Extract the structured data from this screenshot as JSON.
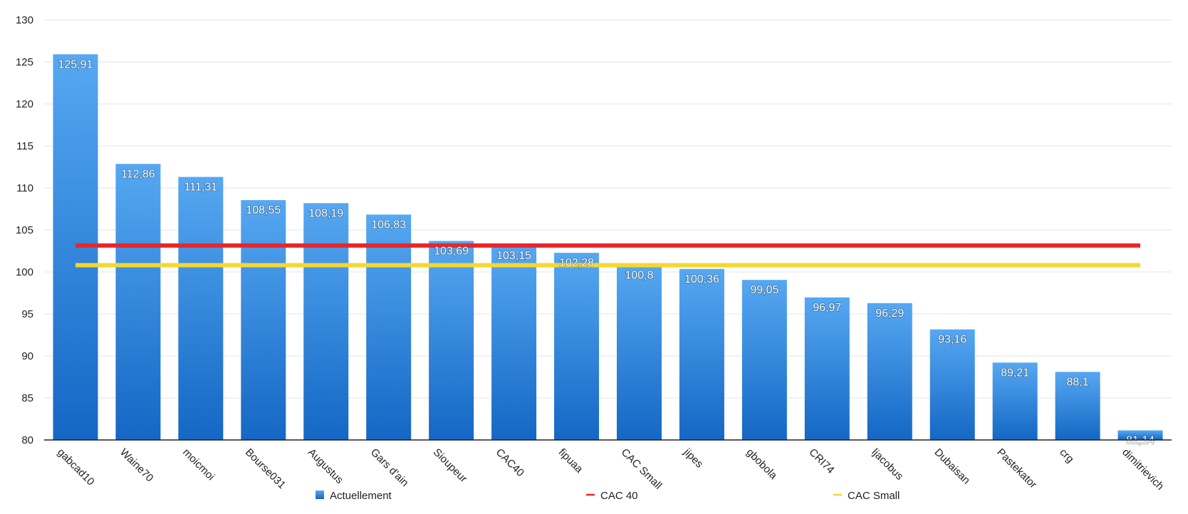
{
  "chart_data": {
    "type": "bar",
    "categories": [
      "gabcad10",
      "Waine70",
      "moicmoi",
      "Bourse031",
      "Augustus",
      "Gars d'ain",
      "Sioupeur",
      "CAC40",
      "fipuaa",
      "CAC Small",
      "jipes",
      "gbobola",
      "CRI74",
      "ljacobus",
      "Dubaisan",
      "Pastekator",
      "crg",
      "dimitrievich"
    ],
    "series": [
      {
        "name": "Actuellement",
        "type": "bar",
        "color": "#2b86de",
        "values": [
          125.91,
          112.86,
          111.31,
          108.55,
          108.19,
          106.83,
          103.69,
          103.15,
          102.28,
          100.8,
          100.36,
          99.05,
          96.97,
          96.29,
          93.16,
          89.21,
          88.1,
          81.14
        ]
      },
      {
        "name": "CAC 40",
        "type": "line",
        "color": "#e8262a",
        "values": [
          103.15,
          103.15,
          103.15,
          103.15,
          103.15,
          103.15,
          103.15,
          103.15,
          103.15,
          103.15,
          103.15,
          103.15,
          103.15,
          103.15,
          103.15,
          103.15,
          103.15,
          103.15
        ]
      },
      {
        "name": "CAC Small",
        "type": "line",
        "color": "#f5d731",
        "values": [
          100.8,
          100.8,
          100.8,
          100.8,
          100.8,
          100.8,
          100.8,
          100.8,
          100.8,
          100.8,
          100.8,
          100.8,
          100.8,
          100.8,
          100.8,
          100.8,
          100.8,
          100.8
        ]
      }
    ],
    "data_labels": [
      "125,91",
      "112,86",
      "111,31",
      "108,55",
      "108,19",
      "106,83",
      "103,69",
      "103,15",
      "102,28",
      "100,8",
      "100,36",
      "99,05",
      "96,97",
      "96,29",
      "93,16",
      "89,21",
      "88,1",
      "81,14"
    ],
    "ylim": [
      80,
      130
    ],
    "yticks": [
      "80",
      "85",
      "90",
      "95",
      "100",
      "105",
      "110",
      "115",
      "120",
      "125",
      "130"
    ],
    "title": "",
    "xlabel": "",
    "ylabel": "",
    "grid": true,
    "legend_position": "bottom"
  }
}
